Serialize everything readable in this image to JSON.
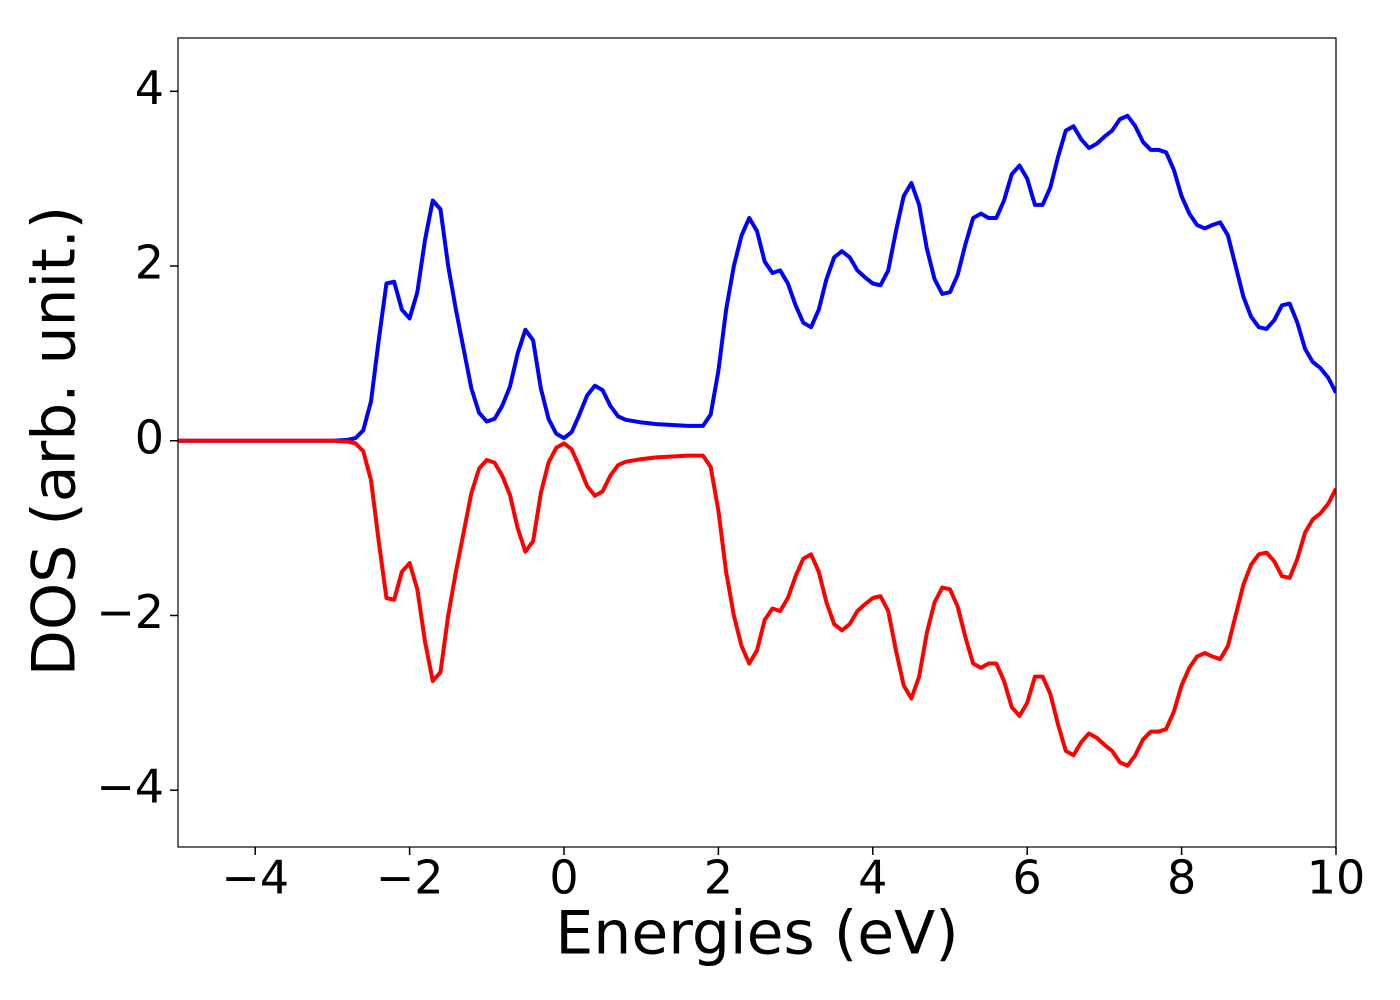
{
  "chart_data": {
    "type": "line",
    "xlabel": "Energies (eV)",
    "ylabel": "DOS (arb. unit.)",
    "x": [
      -5,
      -4,
      -3,
      -2.8,
      -2.7,
      -2.6,
      -2.5,
      -2.4,
      -2.3,
      -2.2,
      -2.1,
      -2.0,
      -1.9,
      -1.8,
      -1.7,
      -1.6,
      -1.5,
      -1.4,
      -1.3,
      -1.2,
      -1.1,
      -1.0,
      -0.9,
      -0.8,
      -0.7,
      -0.6,
      -0.5,
      -0.4,
      -0.3,
      -0.2,
      -0.1,
      0,
      0.1,
      0.2,
      0.3,
      0.4,
      0.5,
      0.6,
      0.7,
      0.8,
      1.0,
      1.2,
      1.4,
      1.6,
      1.8,
      1.9,
      2.0,
      2.1,
      2.2,
      2.3,
      2.4,
      2.5,
      2.6,
      2.7,
      2.8,
      2.9,
      3.0,
      3.1,
      3.2,
      3.3,
      3.4,
      3.5,
      3.6,
      3.7,
      3.8,
      3.9,
      4.0,
      4.1,
      4.2,
      4.3,
      4.4,
      4.5,
      4.6,
      4.7,
      4.8,
      4.9,
      5.0,
      5.1,
      5.2,
      5.3,
      5.4,
      5.5,
      5.6,
      5.7,
      5.8,
      5.9,
      6.0,
      6.1,
      6.2,
      6.3,
      6.4,
      6.5,
      6.6,
      6.7,
      6.8,
      6.9,
      7.0,
      7.1,
      7.2,
      7.3,
      7.4,
      7.5,
      7.6,
      7.7,
      7.8,
      7.9,
      8.0,
      8.1,
      8.2,
      8.3,
      8.4,
      8.5,
      8.6,
      8.7,
      8.8,
      8.9,
      9.0,
      9.1,
      9.2,
      9.3,
      9.4,
      9.5,
      9.6,
      9.7,
      9.8,
      9.9,
      10.0
    ],
    "series": [
      {
        "color": "#0000ff",
        "values": [
          0,
          0,
          0,
          0.01,
          0.03,
          0.12,
          0.45,
          1.15,
          1.8,
          1.82,
          1.5,
          1.4,
          1.7,
          2.3,
          2.75,
          2.65,
          2.0,
          1.5,
          1.05,
          0.6,
          0.32,
          0.22,
          0.25,
          0.4,
          0.62,
          1.0,
          1.27,
          1.15,
          0.6,
          0.25,
          0.08,
          0.03,
          0.1,
          0.3,
          0.52,
          0.63,
          0.58,
          0.4,
          0.28,
          0.24,
          0.21,
          0.19,
          0.18,
          0.17,
          0.17,
          0.3,
          0.8,
          1.5,
          2.0,
          2.35,
          2.55,
          2.4,
          2.05,
          1.92,
          1.95,
          1.8,
          1.55,
          1.35,
          1.3,
          1.5,
          1.85,
          2.1,
          2.17,
          2.1,
          1.95,
          1.87,
          1.8,
          1.78,
          1.95,
          2.4,
          2.8,
          2.95,
          2.7,
          2.2,
          1.85,
          1.68,
          1.7,
          1.9,
          2.25,
          2.55,
          2.6,
          2.55,
          2.55,
          2.75,
          3.05,
          3.15,
          3.0,
          2.7,
          2.7,
          2.9,
          3.25,
          3.55,
          3.6,
          3.45,
          3.35,
          3.4,
          3.48,
          3.55,
          3.68,
          3.72,
          3.6,
          3.42,
          3.33,
          3.33,
          3.3,
          3.1,
          2.8,
          2.6,
          2.47,
          2.43,
          2.47,
          2.5,
          2.35,
          2.0,
          1.65,
          1.42,
          1.3,
          1.28,
          1.38,
          1.55,
          1.57,
          1.35,
          1.05,
          0.9,
          0.83,
          0.72,
          0.55
        ]
      },
      {
        "color": "#ff0000",
        "values": [
          0,
          0,
          0,
          -0.01,
          -0.03,
          -0.12,
          -0.45,
          -1.15,
          -1.8,
          -1.82,
          -1.5,
          -1.4,
          -1.7,
          -2.3,
          -2.75,
          -2.65,
          -2.0,
          -1.5,
          -1.05,
          -0.6,
          -0.32,
          -0.22,
          -0.25,
          -0.4,
          -0.62,
          -1.0,
          -1.27,
          -1.15,
          -0.6,
          -0.25,
          -0.08,
          -0.03,
          -0.1,
          -0.3,
          -0.52,
          -0.63,
          -0.58,
          -0.4,
          -0.28,
          -0.24,
          -0.21,
          -0.19,
          -0.18,
          -0.17,
          -0.17,
          -0.3,
          -0.8,
          -1.5,
          -2.0,
          -2.35,
          -2.55,
          -2.4,
          -2.05,
          -1.92,
          -1.95,
          -1.8,
          -1.55,
          -1.35,
          -1.3,
          -1.5,
          -1.85,
          -2.1,
          -2.17,
          -2.1,
          -1.95,
          -1.87,
          -1.8,
          -1.78,
          -1.95,
          -2.4,
          -2.8,
          -2.95,
          -2.7,
          -2.2,
          -1.85,
          -1.68,
          -1.7,
          -1.9,
          -2.25,
          -2.55,
          -2.6,
          -2.55,
          -2.55,
          -2.75,
          -3.05,
          -3.15,
          -3.0,
          -2.7,
          -2.7,
          -2.9,
          -3.25,
          -3.55,
          -3.6,
          -3.45,
          -3.35,
          -3.4,
          -3.48,
          -3.55,
          -3.68,
          -3.72,
          -3.6,
          -3.42,
          -3.33,
          -3.33,
          -3.3,
          -3.1,
          -2.8,
          -2.6,
          -2.47,
          -2.43,
          -2.47,
          -2.5,
          -2.35,
          -2.0,
          -1.65,
          -1.42,
          -1.3,
          -1.28,
          -1.38,
          -1.55,
          -1.57,
          -1.35,
          -1.05,
          -0.9,
          -0.83,
          -0.72,
          -0.55
        ]
      }
    ],
    "xlim": [
      -5,
      10
    ],
    "ylim": [
      -4.65,
      4.61
    ],
    "xticks": [
      {
        "value": -4,
        "label": "−4"
      },
      {
        "value": -2,
        "label": "−2"
      },
      0,
      2,
      4,
      6,
      8,
      10
    ],
    "yticks": [
      {
        "value": -4,
        "label": "−4"
      },
      {
        "value": -2,
        "label": "−2"
      },
      0,
      2,
      4
    ],
    "grid": false
  }
}
